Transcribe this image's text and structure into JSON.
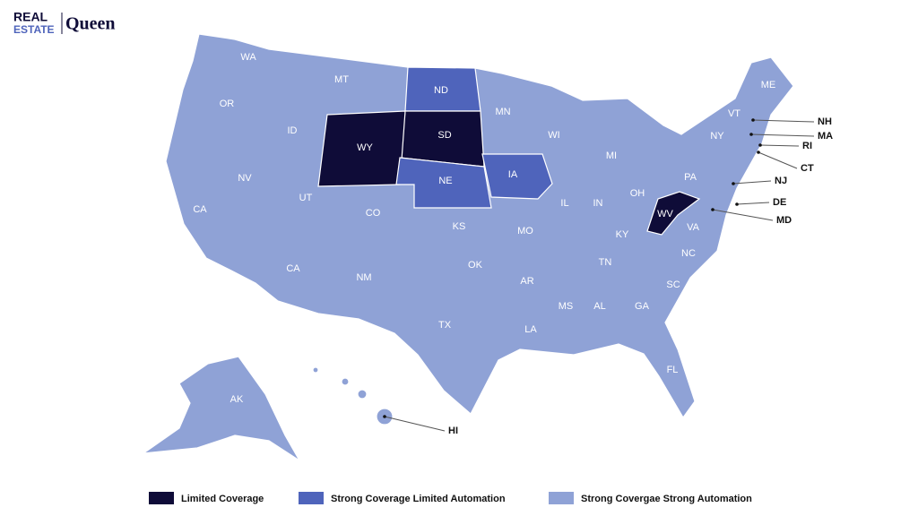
{
  "logo": {
    "line1": "REAL",
    "line2": "ESTATE",
    "brand": "Queen"
  },
  "map": {
    "states": [
      "WA",
      "MT",
      "ND",
      "MN",
      "ME",
      "OR",
      "ID",
      "WY",
      "SD",
      "WI",
      "VT",
      "NY",
      "NV",
      "UT",
      "NE",
      "IA",
      "MI",
      "CA",
      "CA",
      "CO",
      "KS",
      "MO",
      "IL",
      "IN",
      "OH",
      "PA",
      "WV",
      "KY",
      "VA",
      "OK",
      "AR",
      "TN",
      "NC",
      "NM",
      "TX",
      "LA",
      "MS",
      "AL",
      "GA",
      "SC",
      "FL",
      "AK"
    ],
    "callouts": [
      "NH",
      "MA",
      "RI",
      "CT",
      "NJ",
      "DE",
      "MD",
      "HI"
    ]
  },
  "legend": [
    {
      "label": "Limited Coverage",
      "color": "#0f0c38"
    },
    {
      "label": "Strong Coverage Limited Automation",
      "color": "#4f64bb"
    },
    {
      "label": "Strong Covergae Strong Automation",
      "color": "#8fa2d6"
    }
  ]
}
